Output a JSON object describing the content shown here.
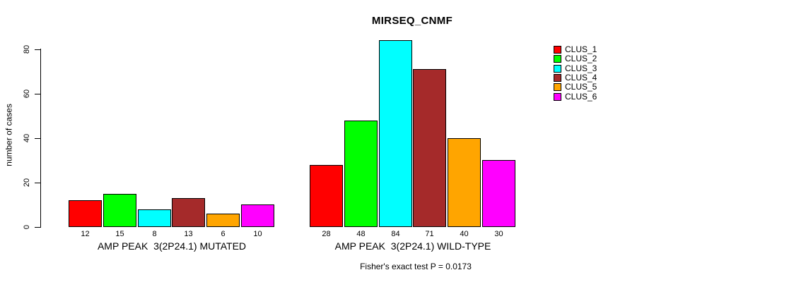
{
  "title": "MIRSEQ_CNMF",
  "footer": "Fisher's exact test P = 0.0173",
  "chart_data": {
    "type": "bar",
    "title": "MIRSEQ_CNMF",
    "xlabel": "",
    "ylabel": "number of cases",
    "ylim": [
      0,
      80
    ],
    "yticks": [
      0,
      20,
      40,
      60,
      80
    ],
    "grid": false,
    "legend_position": "right",
    "legend": [
      {
        "label": "CLUS_1",
        "color": "#FF0000"
      },
      {
        "label": "CLUS_2",
        "color": "#00FF00"
      },
      {
        "label": "CLUS_3",
        "color": "#00FFFF"
      },
      {
        "label": "CLUS_4",
        "color": "#A52A2A"
      },
      {
        "label": "CLUS_5",
        "color": "#FFA500"
      },
      {
        "label": "CLUS_6",
        "color": "#FF00FF"
      }
    ],
    "series_colors": [
      "#FF0000",
      "#00FF00",
      "#00FFFF",
      "#A52A2A",
      "#FFA500",
      "#FF00FF"
    ],
    "groups": [
      {
        "label": "AMP PEAK  3(2P24.1) MUTATED",
        "clusters": [
          "CLUS_1",
          "CLUS_2",
          "CLUS_3",
          "CLUS_4",
          "CLUS_5",
          "CLUS_6"
        ],
        "values": [
          12,
          15,
          8,
          13,
          6,
          10
        ]
      },
      {
        "label": "AMP PEAK  3(2P24.1) WILD-TYPE",
        "clusters": [
          "CLUS_1",
          "CLUS_2",
          "CLUS_3",
          "CLUS_4",
          "CLUS_5",
          "CLUS_6"
        ],
        "values": [
          28,
          48,
          84,
          71,
          40,
          30
        ]
      }
    ],
    "annotation": "Fisher's exact test P = 0.0173"
  }
}
